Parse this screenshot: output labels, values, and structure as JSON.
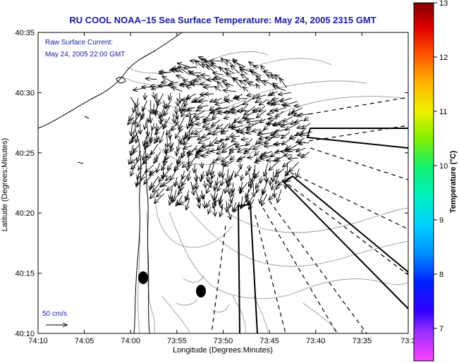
{
  "title": "RU COOL  NOAA–15  Sea Surface Temperature:  May 24, 2005 2315 GMT",
  "legend": {
    "line1": "Raw Surface Current:",
    "line2": "May 24, 2005 22:00 GMT",
    "scale_label": "50 cm/s"
  },
  "x_axis": {
    "label": "Longitude (Degrees:Minutes)",
    "ticks": [
      "74:10",
      "74:05",
      "74:00",
      "73:55",
      "73:50",
      "73:45",
      "73:40",
      "73:35",
      "73:3"
    ]
  },
  "y_axis": {
    "label": "Latitude (Degrees:Minutes)",
    "ticks": [
      "40:35",
      "40:30",
      "40:25",
      "40:20",
      "40:15",
      "40:10"
    ]
  },
  "colorbar": {
    "label": "Temperature (°C)",
    "ticks": [
      "13",
      "12",
      "11",
      "10",
      "9",
      "8",
      "7"
    ]
  },
  "colors": {
    "title": "#1a1aa0",
    "coast": "#000000",
    "bathymetry": "#9a9a9a"
  }
}
